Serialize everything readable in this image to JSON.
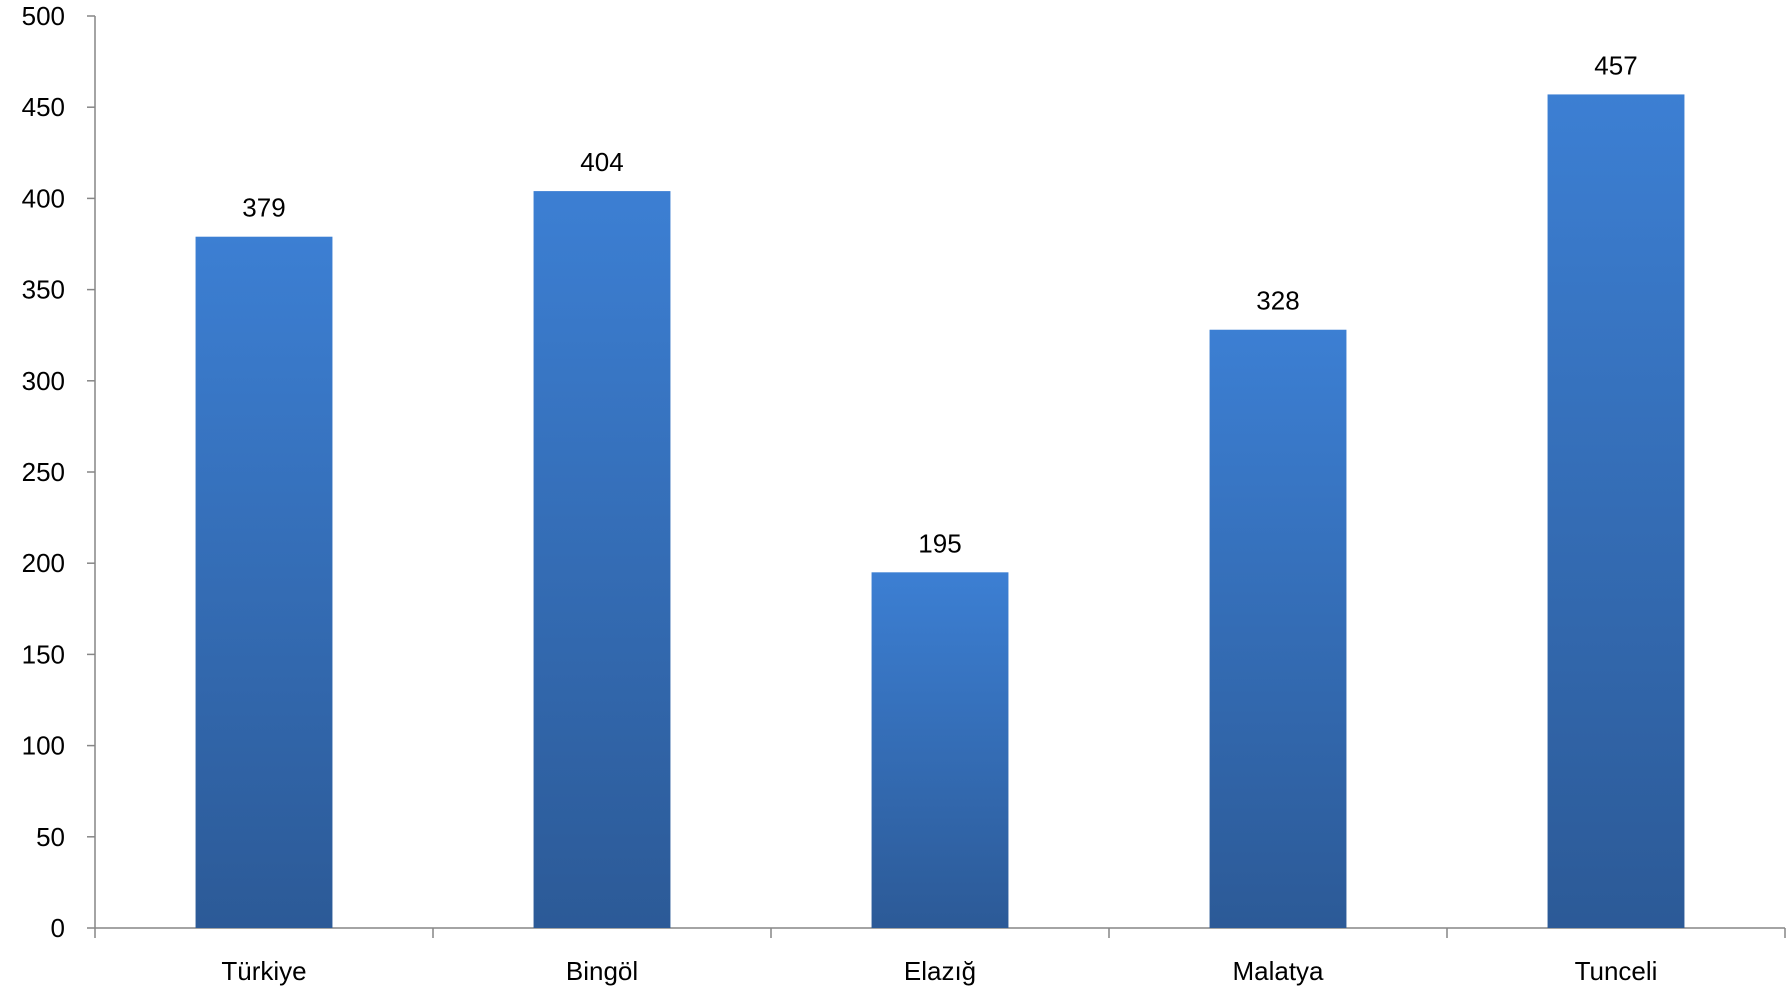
{
  "chart_data": {
    "type": "bar",
    "title": "",
    "xlabel": "",
    "ylabel": "",
    "categories": [
      "Türkiye",
      "Bingöl",
      "Elazığ",
      "Malatya",
      "Tunceli"
    ],
    "series": [
      {
        "values": [
          379,
          404,
          195,
          328,
          457
        ]
      }
    ],
    "ylim": [
      0,
      500
    ],
    "yticks": [
      0,
      50,
      100,
      150,
      200,
      250,
      300,
      350,
      400,
      450,
      500
    ],
    "grid": false,
    "legend": "none",
    "data_labels": true,
    "colors": {
      "bar_top": "#3c7fd3",
      "bar_bottom": "#2c5a97",
      "axis": "#868686",
      "text": "#000000"
    }
  }
}
